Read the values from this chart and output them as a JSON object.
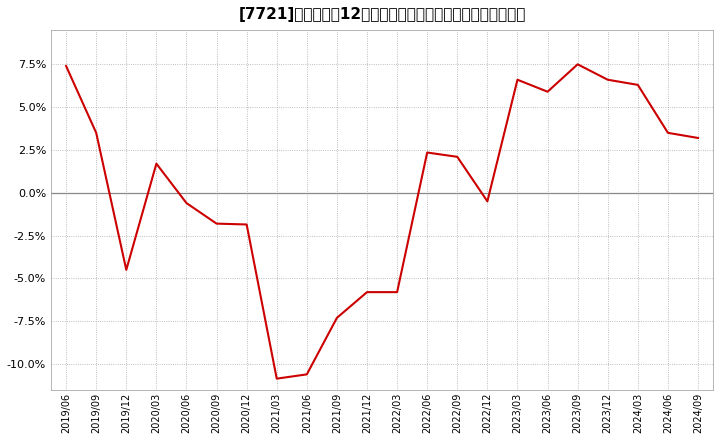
{
  "title_str": "[7721]　売上高の12か月移動合計の対前年同期増減率の推移",
  "line_color": "#cc0000",
  "background_color": "#ffffff",
  "plot_bg_color": "#ffffff",
  "grid_color": "#aaaaaa",
  "x_labels": [
    "2019/06",
    "2019/09",
    "2019/12",
    "2020/03",
    "2020/06",
    "2020/09",
    "2020/12",
    "2021/03",
    "2021/06",
    "2021/09",
    "2021/12",
    "2022/03",
    "2022/06",
    "2022/09",
    "2022/12",
    "2023/03",
    "2023/06",
    "2023/09",
    "2023/12",
    "2024/03",
    "2024/06",
    "2024/09"
  ],
  "y_values": [
    7.4,
    3.5,
    -4.5,
    1.7,
    -0.6,
    -1.8,
    -1.85,
    -10.85,
    -10.6,
    -7.3,
    -5.8,
    -5.8,
    2.35,
    2.1,
    -0.5,
    6.6,
    5.9,
    7.5,
    6.6,
    6.3,
    3.5,
    3.2
  ],
  "ylim": [
    -11.5,
    9.5
  ],
  "yticks": [
    -10.0,
    -7.5,
    -5.0,
    -2.5,
    0.0,
    2.5,
    5.0,
    7.5
  ],
  "zero_line_color": "#888888",
  "title_prefix": "[7721]",
  "title_body": "　売上高の12か月移動合計の対前年同期増減率の推移"
}
